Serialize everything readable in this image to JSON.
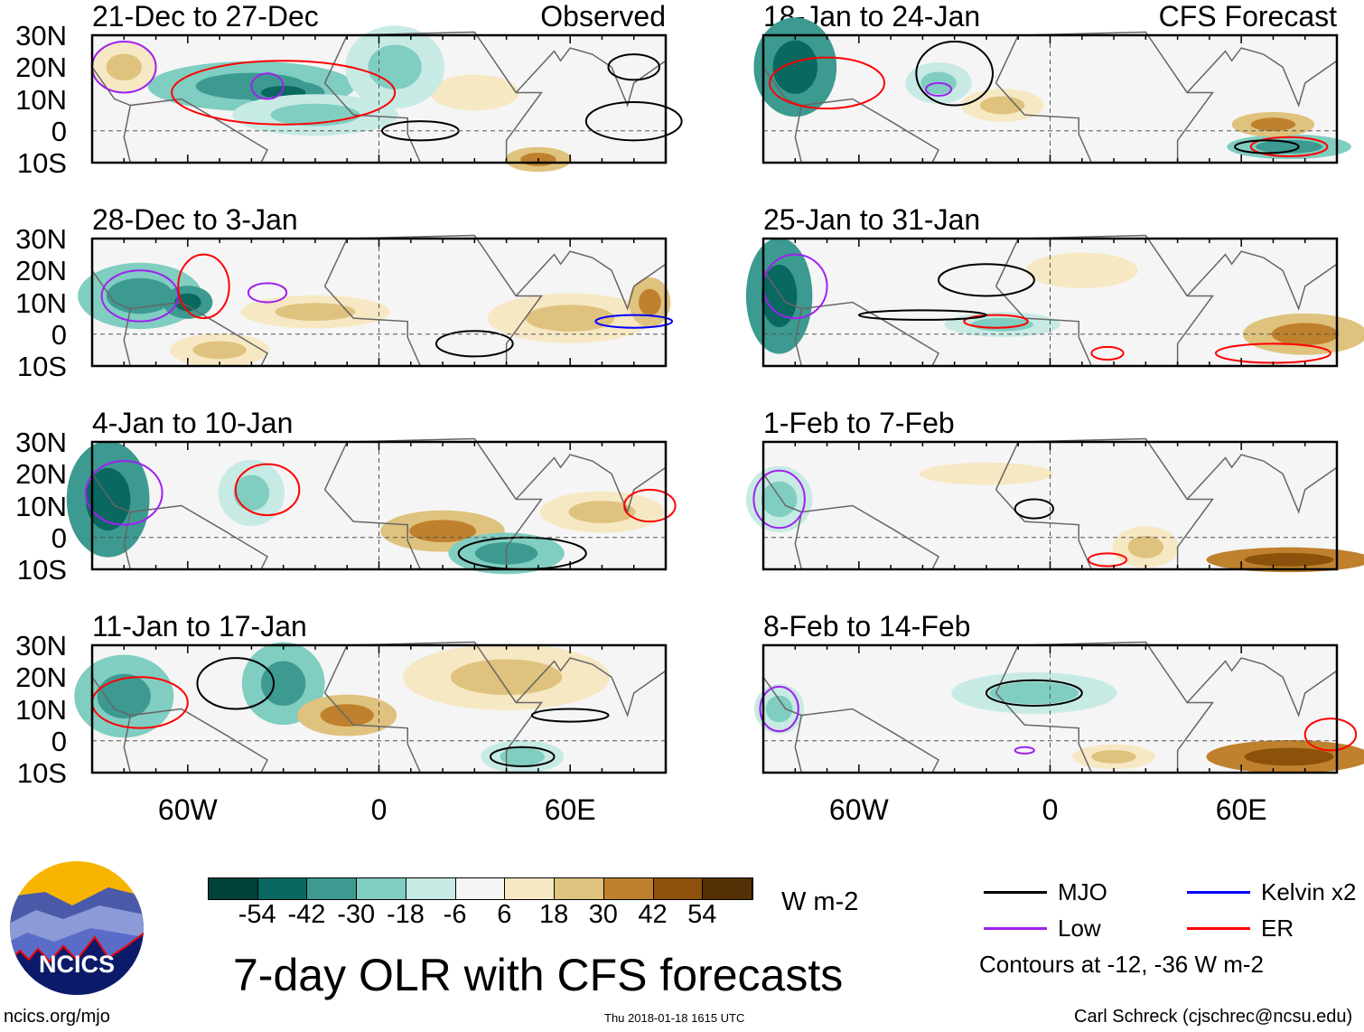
{
  "chart_data": {
    "type": "heatmap",
    "title": "7-day OLR with CFS forecasts",
    "units": "W m-2",
    "columns": [
      {
        "label": "Observed",
        "panels": [
          "21-Dec to 27-Dec",
          "28-Dec to 3-Jan",
          "4-Jan to 10-Jan",
          "11-Jan to 17-Jan"
        ]
      },
      {
        "label": "CFS Forecast",
        "panels": [
          "18-Jan to 24-Jan",
          "25-Jan to 31-Jan",
          "1-Feb to 7-Feb",
          "8-Feb to 14-Feb"
        ]
      }
    ],
    "lat_ticks": [
      "30N",
      "20N",
      "10N",
      "0",
      "10S"
    ],
    "lon_ticks": [
      "60W",
      "0",
      "60E"
    ],
    "lat_range": [
      -10,
      30
    ],
    "lon_range": [
      -90,
      90
    ],
    "colorbar": {
      "levels": [
        "-54",
        "-42",
        "-30",
        "-18",
        "-6",
        "6",
        "18",
        "30",
        "42",
        "54"
      ],
      "colors": [
        "#01423a",
        "#09685f",
        "#3c9a90",
        "#80cdc1",
        "#c7eae5",
        "#f5f5f5",
        "#f6e8c3",
        "#dfc27d",
        "#bf812d",
        "#8c510a",
        "#543005"
      ]
    },
    "legend": [
      {
        "label": "MJO",
        "color": "#000000"
      },
      {
        "label": "Kelvin x2",
        "color": "#0000ff"
      },
      {
        "label": "Low",
        "color": "#a020f0"
      },
      {
        "label": "ER",
        "color": "#ff0000"
      }
    ],
    "contour_note": "Contours at -12, -36 W m-2"
  },
  "footer": {
    "url": "ncics.org/mjo",
    "timestamp": "Thu 2018-01-18 1615 UTC",
    "author": "Carl Schreck (cjschrec@ncsu.edu)",
    "logo_text": "NCICS"
  }
}
